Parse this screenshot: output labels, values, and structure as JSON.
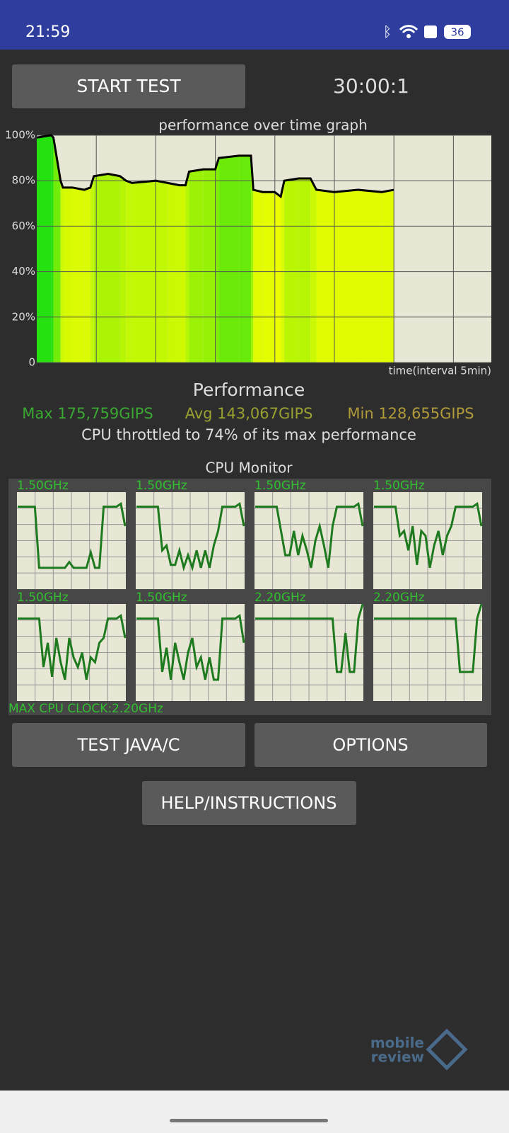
{
  "status_bar": {
    "time": "21:59",
    "battery": "36"
  },
  "start_button": "START TEST",
  "timer": "30:00:1",
  "chart_data": [
    {
      "type": "area",
      "title": "performance over time graph",
      "x_label": "time(interval 5min)",
      "x": [
        0,
        1.2,
        1.4,
        2,
        2.2,
        3,
        4,
        4.5,
        4.8,
        6,
        7,
        7.5,
        8,
        10,
        11,
        12,
        12.5,
        12.8,
        14,
        15,
        15.3,
        17,
        18,
        18.2,
        19,
        20,
        20.5,
        20.8,
        22,
        23,
        23.5,
        25,
        27,
        29,
        30
      ],
      "values": [
        99,
        100,
        99,
        80,
        77,
        77,
        76,
        77,
        82,
        83,
        82,
        80,
        79,
        80,
        79,
        78,
        78,
        84,
        85,
        85,
        90,
        91,
        91,
        76,
        75,
        75,
        73,
        80,
        81,
        81,
        76,
        75,
        76,
        75,
        76
      ],
      "xlim": [
        0,
        38.2
      ],
      "ylim": [
        0,
        100
      ],
      "yticks": [
        0,
        {
          "value": 20,
          "label": "20%"
        },
        {
          "value": 40,
          "label": "40%"
        },
        {
          "value": 60,
          "label": "60%"
        },
        {
          "value": 80,
          "label": "80%"
        },
        {
          "value": 100,
          "label": "100%"
        }
      ],
      "grid": true,
      "high_color": "#22e010",
      "low_color": "#f5ff00",
      "line_color": "#000000",
      "background": "#e8e6d4"
    },
    {
      "type": "line",
      "title": "1.50GHz",
      "ylim": [
        0,
        100
      ],
      "color": "#1e7a1e",
      "values": [
        85,
        85,
        85,
        85,
        85,
        22,
        22,
        22,
        22,
        22,
        22,
        22,
        28,
        22,
        22,
        22,
        22,
        38,
        22,
        22,
        85,
        85,
        85,
        85,
        88,
        65
      ]
    },
    {
      "type": "line",
      "title": "1.50GHz",
      "ylim": [
        0,
        100
      ],
      "color": "#1e7a1e",
      "values": [
        85,
        85,
        85,
        85,
        85,
        85,
        40,
        45,
        25,
        25,
        40,
        22,
        35,
        22,
        40,
        22,
        40,
        22,
        45,
        60,
        85,
        85,
        85,
        85,
        88,
        65
      ]
    },
    {
      "type": "line",
      "title": "1.50GHz",
      "ylim": [
        0,
        100
      ],
      "color": "#1e7a1e",
      "values": [
        85,
        85,
        85,
        85,
        85,
        85,
        60,
        35,
        35,
        60,
        35,
        55,
        40,
        22,
        50,
        65,
        45,
        22,
        65,
        85,
        85,
        85,
        85,
        85,
        88,
        65
      ]
    },
    {
      "type": "line",
      "title": "1.50GHz",
      "ylim": [
        0,
        100
      ],
      "color": "#1e7a1e",
      "values": [
        85,
        85,
        85,
        85,
        85,
        85,
        55,
        60,
        40,
        65,
        25,
        60,
        55,
        22,
        45,
        60,
        35,
        55,
        65,
        85,
        85,
        85,
        85,
        85,
        88,
        65
      ]
    },
    {
      "type": "line",
      "title": "1.50GHz",
      "ylim": [
        0,
        100
      ],
      "color": "#1e7a1e",
      "values": [
        85,
        85,
        85,
        85,
        85,
        85,
        35,
        60,
        25,
        65,
        40,
        22,
        65,
        45,
        35,
        50,
        22,
        45,
        40,
        60,
        65,
        85,
        85,
        85,
        88,
        65
      ]
    },
    {
      "type": "line",
      "title": "1.50GHz",
      "ylim": [
        0,
        100
      ],
      "color": "#1e7a1e",
      "values": [
        85,
        85,
        85,
        85,
        85,
        85,
        30,
        55,
        22,
        60,
        40,
        22,
        50,
        65,
        35,
        45,
        22,
        45,
        22,
        22,
        85,
        85,
        85,
        85,
        88,
        60
      ]
    },
    {
      "type": "line",
      "title": "2.20GHz",
      "ylim": [
        0,
        100
      ],
      "color": "#1e7a1e",
      "values": [
        85,
        85,
        85,
        85,
        85,
        85,
        85,
        85,
        85,
        85,
        85,
        85,
        85,
        85,
        85,
        85,
        85,
        85,
        85,
        30,
        30,
        70,
        30,
        30,
        85,
        100
      ]
    },
    {
      "type": "line",
      "title": "2.20GHz",
      "ylim": [
        0,
        100
      ],
      "color": "#1e7a1e",
      "values": [
        85,
        85,
        85,
        85,
        85,
        85,
        85,
        85,
        85,
        85,
        85,
        85,
        85,
        85,
        85,
        85,
        85,
        85,
        85,
        85,
        30,
        30,
        30,
        30,
        85,
        100
      ]
    }
  ],
  "performance": {
    "heading": "Performance",
    "max": "Max 175,759GIPS",
    "avg": "Avg 143,067GIPS",
    "min": "Min 128,655GIPS",
    "throttle": "CPU throttled to 74% of its max performance"
  },
  "cpu_monitor": {
    "title": "CPU Monitor",
    "max_clock": "MAX CPU CLOCK:2.20GHz"
  },
  "buttons": [
    "TEST JAVA/C",
    "OPTIONS",
    "HELP/INSTRUCTIONS"
  ],
  "watermark": [
    "mobile",
    "review"
  ]
}
